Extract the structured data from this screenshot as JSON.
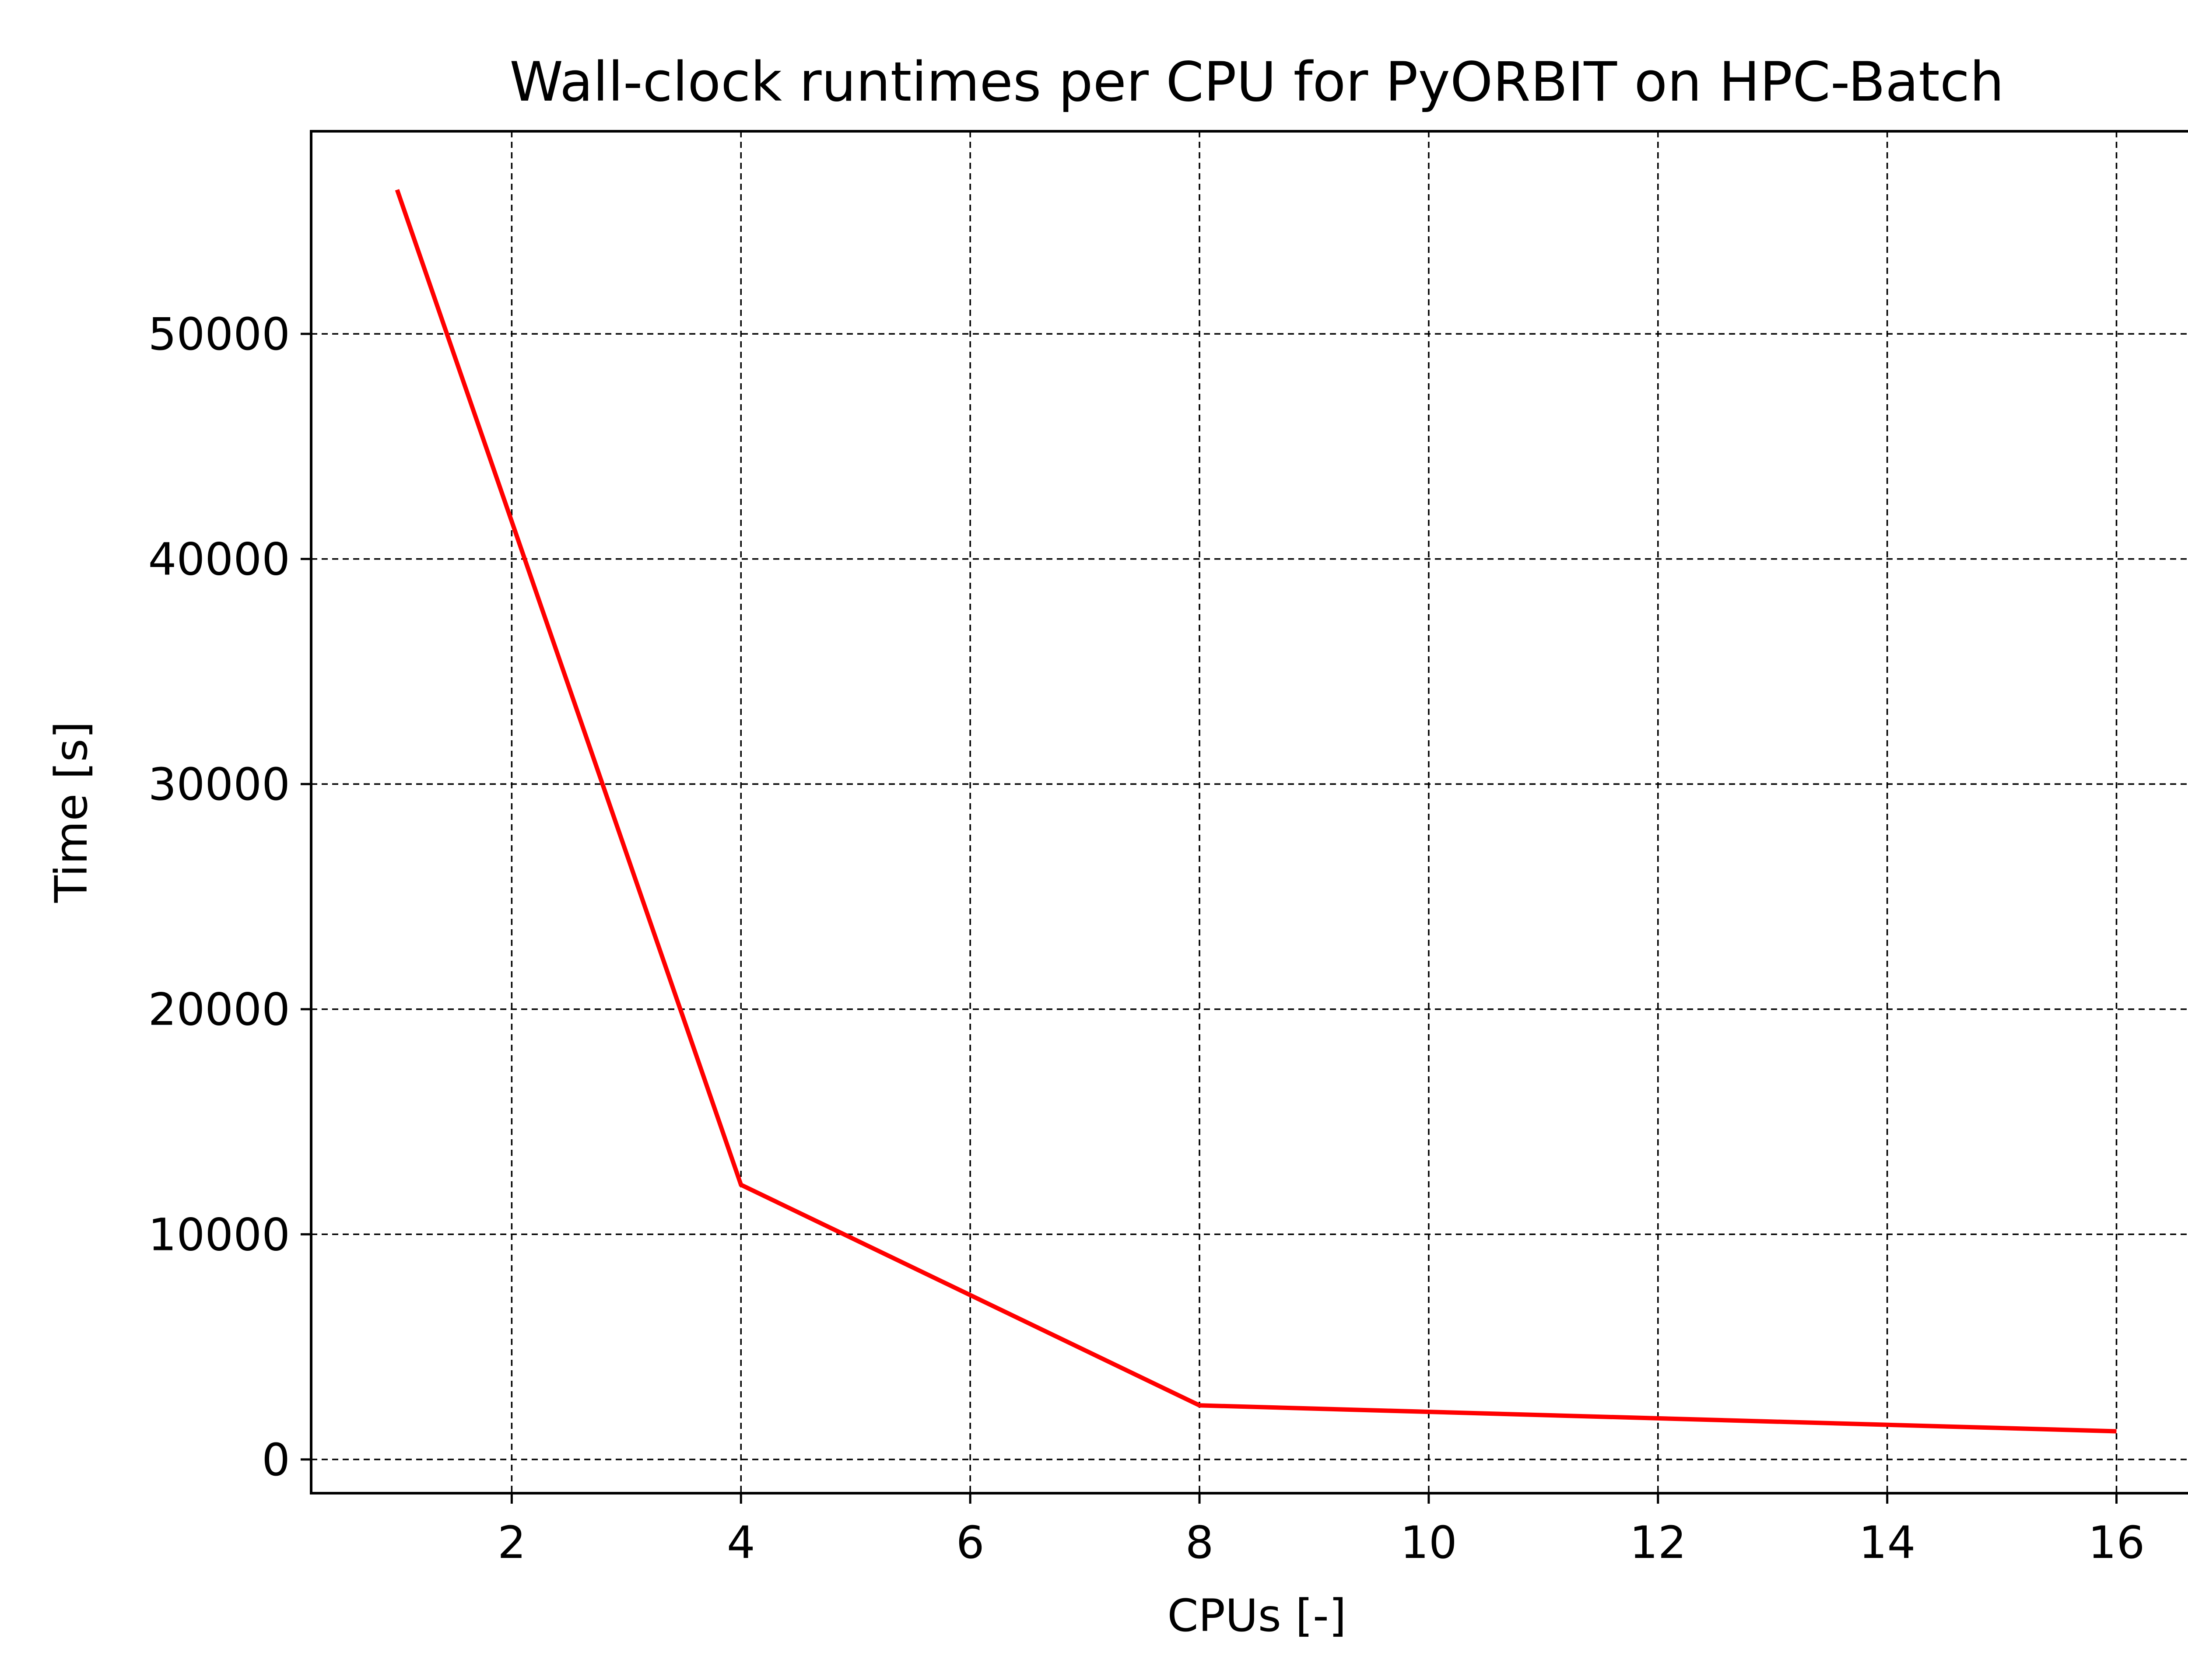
{
  "chart_data": {
    "type": "line",
    "title": "Wall-clock runtimes per CPU for PyORBIT on HPC-Batch",
    "xlabel": "CPUs [-]",
    "ylabel": "Time [s]",
    "xlim": [
      0.25,
      16.75
    ],
    "ylim": [
      -1500,
      59000
    ],
    "xticks": [
      2,
      4,
      6,
      8,
      10,
      12,
      14,
      16
    ],
    "yticks": [
      0,
      10000,
      20000,
      30000,
      40000,
      50000
    ],
    "xtick_labels": [
      "2",
      "4",
      "6",
      "8",
      "10",
      "12",
      "14",
      "16"
    ],
    "ytick_labels": [
      "0",
      "10000",
      "20000",
      "30000",
      "40000",
      "50000"
    ],
    "grid": true,
    "grid_style": "dashed",
    "series": [
      {
        "color": "#ff0000",
        "x": [
          1,
          4,
          8,
          16
        ],
        "y": [
          56400,
          12200,
          2400,
          1250
        ]
      }
    ]
  }
}
